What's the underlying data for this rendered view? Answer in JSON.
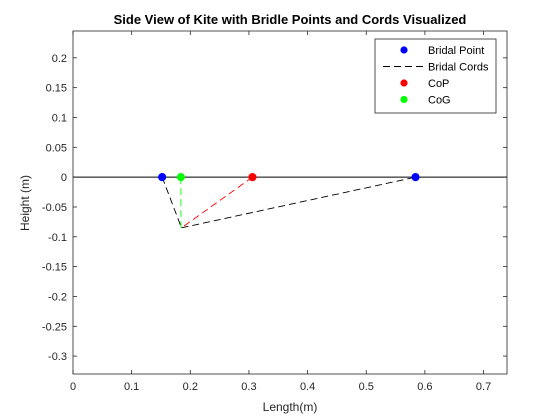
{
  "chart_data": {
    "type": "scatter",
    "title": "Side View of Kite with Bridle Points and Cords Visualized",
    "xlabel": "Length(m)",
    "ylabel": "Height (m)",
    "xlim": [
      0,
      0.74
    ],
    "ylim": [
      -0.33,
      0.245
    ],
    "xticks": [
      0,
      0.1,
      0.2,
      0.3,
      0.4,
      0.5,
      0.6,
      0.7
    ],
    "xtick_labels": [
      "0",
      "0.1",
      "0.2",
      "0.3",
      "0.4",
      "0.5",
      "0.6",
      "0.7"
    ],
    "yticks": [
      0.2,
      0.15,
      0.1,
      0.05,
      0,
      -0.05,
      -0.1,
      -0.15,
      -0.2,
      -0.25,
      -0.3
    ],
    "ytick_labels": [
      "0.2",
      "0.15",
      "0.1",
      "0.05",
      "0",
      "-0.05",
      "-0.1",
      "-0.15",
      "-0.2",
      "-0.25",
      "-0.3"
    ],
    "grid": false,
    "legend_position": "top-right",
    "reference_line": {
      "y": 0,
      "color": "#000000"
    },
    "series": [
      {
        "name": "Bridal Point",
        "kind": "marker",
        "color": "#0000ff",
        "points": [
          [
            0.152,
            0
          ],
          [
            0.584,
            0
          ]
        ]
      },
      {
        "name": "Bridal Cords",
        "kind": "dashed-line",
        "color": "#000000",
        "segments": [
          [
            [
              0.152,
              0
            ],
            [
              0.185,
              -0.085
            ]
          ],
          [
            [
              0.185,
              -0.085
            ],
            [
              0.584,
              0
            ]
          ]
        ]
      },
      {
        "name": "CoP",
        "kind": "marker",
        "color": "#ff0000",
        "points": [
          [
            0.306,
            0
          ]
        ],
        "cord": {
          "color": "#ff0000",
          "from": [
            0.306,
            0
          ],
          "to": [
            0.185,
            -0.085
          ]
        }
      },
      {
        "name": "CoG",
        "kind": "marker",
        "color": "#00ff00",
        "points": [
          [
            0.184,
            0
          ]
        ],
        "cord": {
          "color": "#00ff00",
          "from": [
            0.184,
            0
          ],
          "to": [
            0.184,
            -0.085
          ]
        }
      }
    ]
  }
}
